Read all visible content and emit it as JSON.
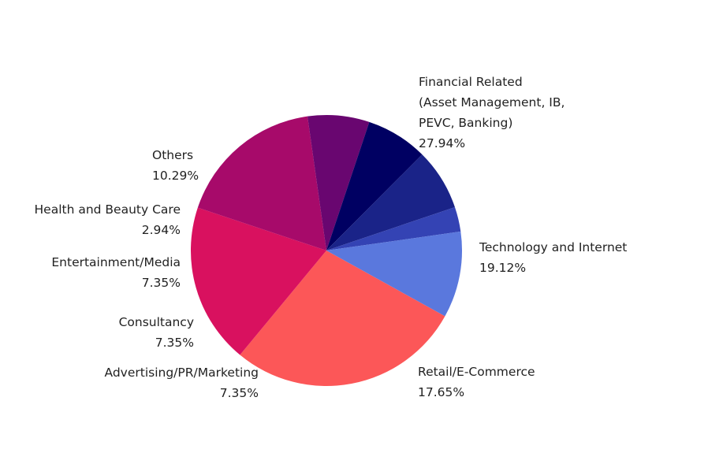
{
  "chart_data": {
    "type": "pie",
    "start_angle_deg": 119,
    "direction": "clockwise",
    "slices": [
      {
        "label_lines": [
          "Financial Related",
          "(Asset Management, IB,",
          "PEVC, Banking)"
        ],
        "percent_label": "27.94%",
        "value": 27.94,
        "color": "#fc5758"
      },
      {
        "label_lines": [
          "Technology and Internet"
        ],
        "percent_label": "19.12%",
        "value": 19.12,
        "color": "#d9115f"
      },
      {
        "label_lines": [
          "Retail/E-Commerce"
        ],
        "percent_label": "17.65%",
        "value": 17.65,
        "color": "#a70a6a"
      },
      {
        "label_lines": [
          "Advertising/PR/Marketing"
        ],
        "percent_label": "7.35%",
        "value": 7.35,
        "color": "#690670"
      },
      {
        "label_lines": [
          "Consultancy"
        ],
        "percent_label": "7.35%",
        "value": 7.35,
        "color": "#000062"
      },
      {
        "label_lines": [
          "Entertainment/Media"
        ],
        "percent_label": "7.35%",
        "value": 7.35,
        "color": "#1a2388"
      },
      {
        "label_lines": [
          "Health and Beauty Care"
        ],
        "percent_label": "2.94%",
        "value": 2.94,
        "color": "#3443b4"
      },
      {
        "label_lines": [
          "Others"
        ],
        "percent_label": "10.29%",
        "value": 10.29,
        "color": "#5a78dd"
      }
    ]
  }
}
